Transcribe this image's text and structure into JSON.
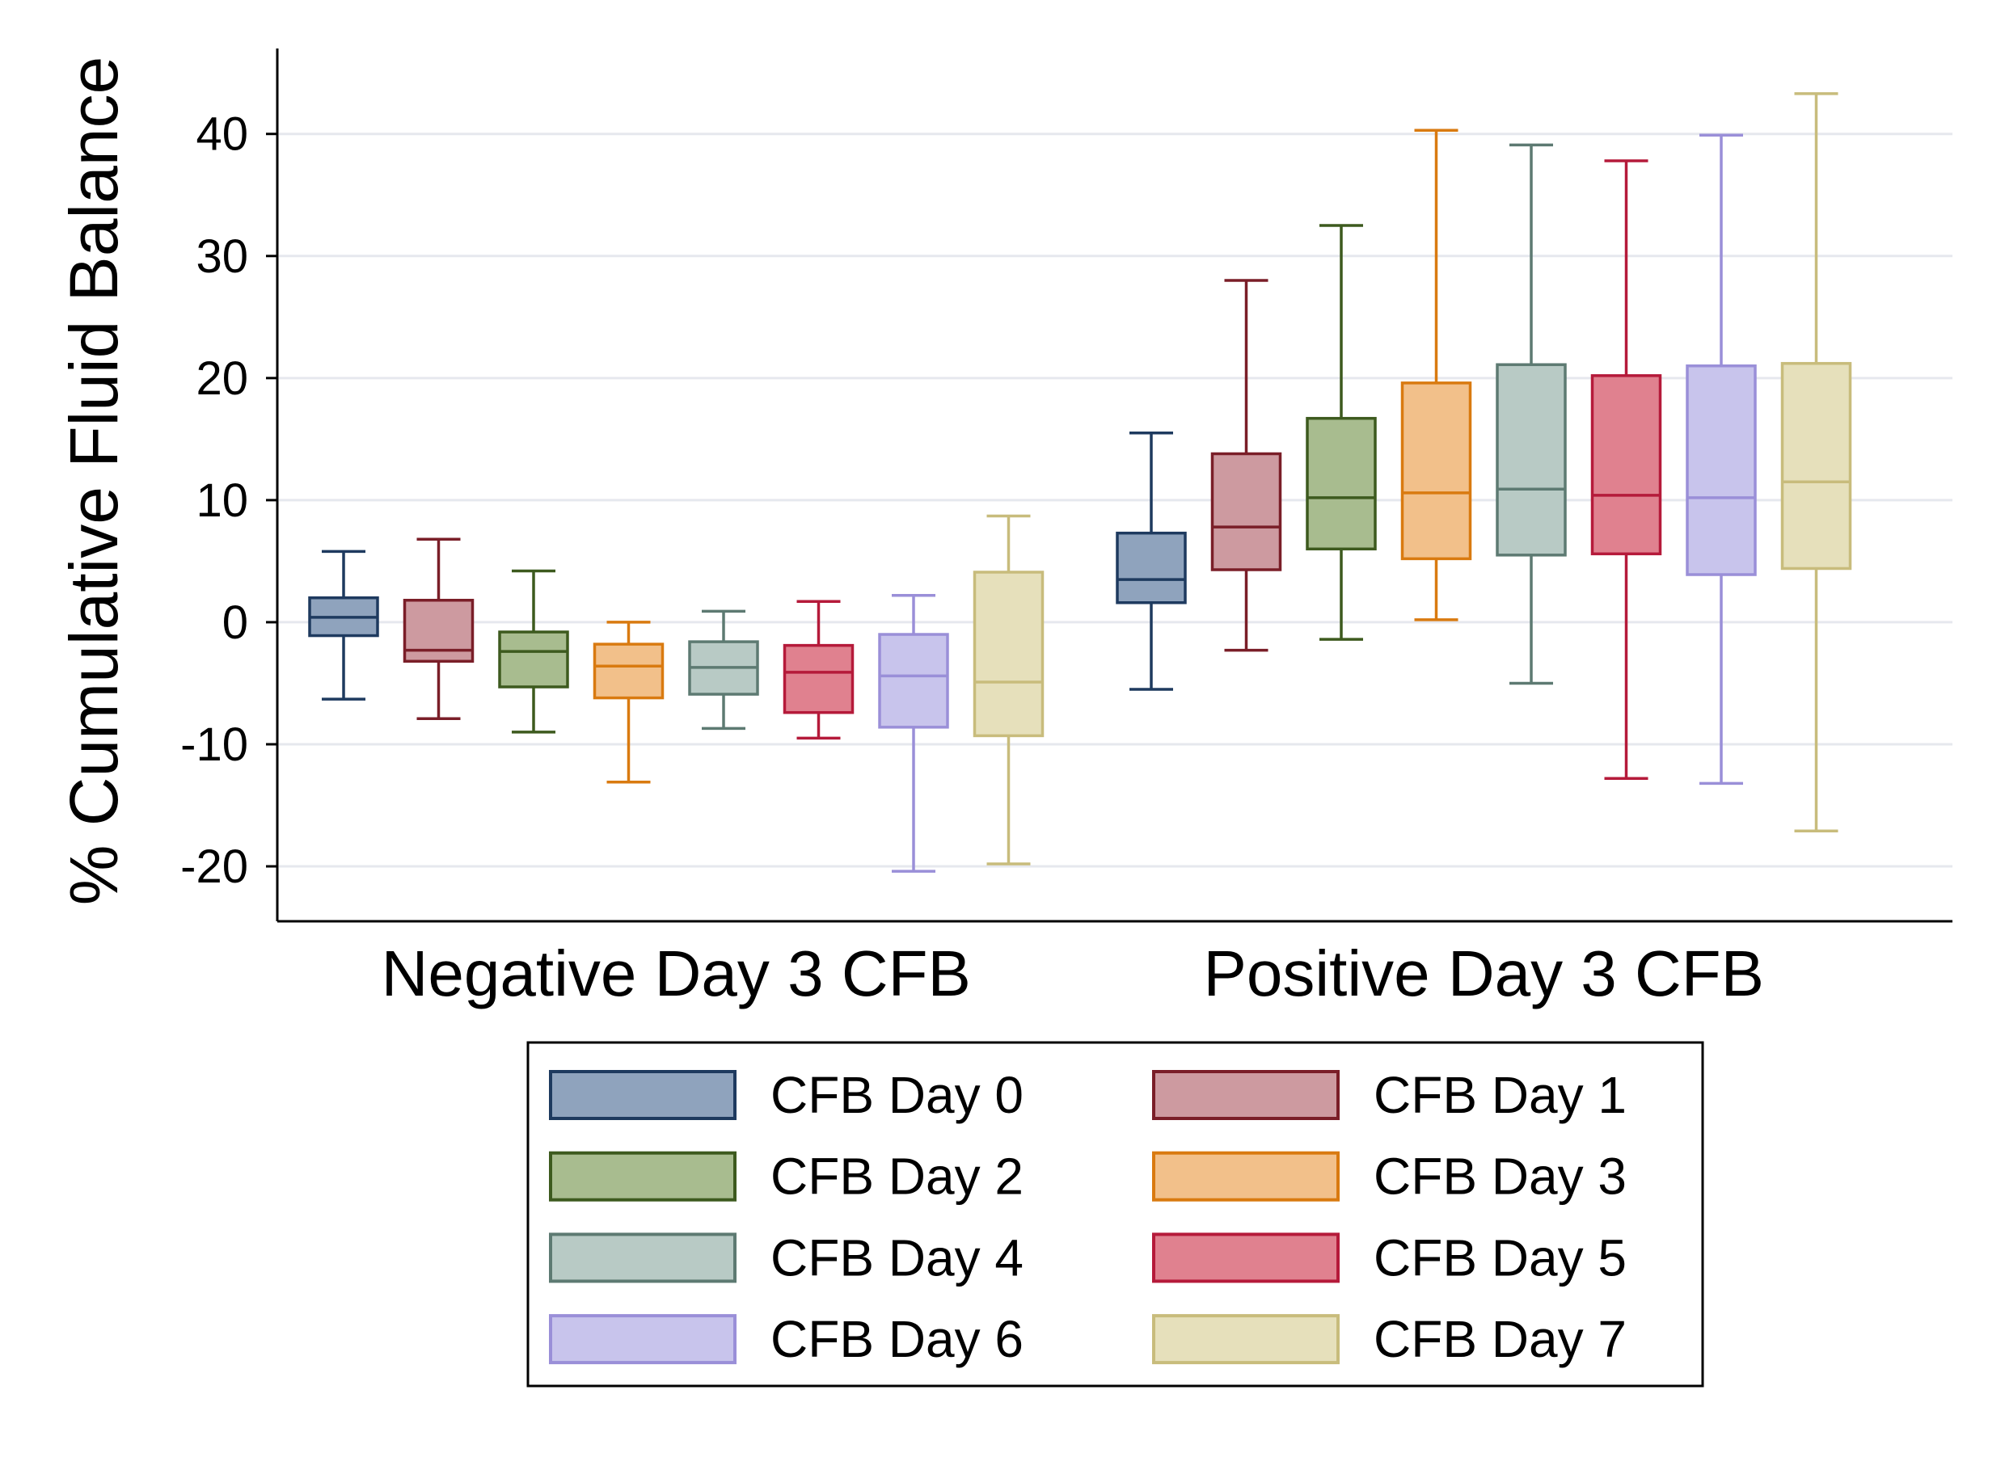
{
  "chart_data": {
    "type": "box",
    "ylabel": "% Cumulative Fluid Balance",
    "ylim": [
      -24.5,
      47
    ],
    "yticks": [
      -20,
      -10,
      0,
      10,
      20,
      30,
      40
    ],
    "ytick_labels": [
      "-20",
      "-10",
      "0",
      "10",
      "20",
      "30",
      "40"
    ],
    "grid": true,
    "legend_position": "bottom",
    "groups": [
      "Negative Day 3 CFB",
      "Positive Day 3 CFB"
    ],
    "series": [
      {
        "name": "CFB Day 0",
        "fill": "#8fa3bd",
        "stroke": "#1e3a5f",
        "boxes": [
          {
            "whisker_low": -6.3,
            "q1": -1.1,
            "median": 0.4,
            "q3": 2.0,
            "whisker_high": 5.8
          },
          {
            "whisker_low": -5.5,
            "q1": 1.6,
            "median": 3.5,
            "q3": 7.3,
            "whisker_high": 15.5
          }
        ]
      },
      {
        "name": "CFB Day 1",
        "fill": "#cd9aa0",
        "stroke": "#7a1e28",
        "boxes": [
          {
            "whisker_low": -7.9,
            "q1": -3.2,
            "median": -2.3,
            "q3": 1.8,
            "whisker_high": 6.8
          },
          {
            "whisker_low": -2.3,
            "q1": 4.3,
            "median": 7.8,
            "q3": 13.8,
            "whisker_high": 28.0
          }
        ]
      },
      {
        "name": "CFB Day 2",
        "fill": "#a8bc8f",
        "stroke": "#3d5a1e",
        "boxes": [
          {
            "whisker_low": -9.0,
            "q1": -5.3,
            "median": -2.4,
            "q3": -0.8,
            "whisker_high": 4.2
          },
          {
            "whisker_low": -1.4,
            "q1": 6.0,
            "median": 10.2,
            "q3": 16.7,
            "whisker_high": 32.5
          }
        ]
      },
      {
        "name": "CFB Day 3",
        "fill": "#f2c08a",
        "stroke": "#d97a10",
        "boxes": [
          {
            "whisker_low": -13.1,
            "q1": -6.2,
            "median": -3.6,
            "q3": -1.8,
            "whisker_high": 0.0
          },
          {
            "whisker_low": 0.2,
            "q1": 5.2,
            "median": 10.6,
            "q3": 19.6,
            "whisker_high": 40.3
          }
        ]
      },
      {
        "name": "CFB Day 4",
        "fill": "#b8cac5",
        "stroke": "#5d7a72",
        "boxes": [
          {
            "whisker_low": -8.7,
            "q1": -5.9,
            "median": -3.7,
            "q3": -1.6,
            "whisker_high": 0.9
          },
          {
            "whisker_low": -5.0,
            "q1": 5.5,
            "median": 10.9,
            "q3": 21.1,
            "whisker_high": 39.1
          }
        ]
      },
      {
        "name": "CFB Day 5",
        "fill": "#e0818f",
        "stroke": "#b51a3a",
        "boxes": [
          {
            "whisker_low": -9.5,
            "q1": -7.4,
            "median": -4.1,
            "q3": -1.9,
            "whisker_high": 1.7
          },
          {
            "whisker_low": -12.8,
            "q1": 5.6,
            "median": 10.4,
            "q3": 20.2,
            "whisker_high": 37.8
          }
        ]
      },
      {
        "name": "CFB Day 6",
        "fill": "#c8c4ec",
        "stroke": "#9a8fd8",
        "boxes": [
          {
            "whisker_low": -20.4,
            "q1": -8.6,
            "median": -4.4,
            "q3": -1.0,
            "whisker_high": 2.2
          },
          {
            "whisker_low": -13.2,
            "q1": 3.9,
            "median": 10.2,
            "q3": 21.0,
            "whisker_high": 39.9
          }
        ]
      },
      {
        "name": "CFB Day 7",
        "fill": "#e6e0bb",
        "stroke": "#c8bc7c",
        "boxes": [
          {
            "whisker_low": -19.8,
            "q1": -9.3,
            "median": -4.9,
            "q3": 4.1,
            "whisker_high": 8.7
          },
          {
            "whisker_low": -17.1,
            "q1": 4.4,
            "median": 11.5,
            "q3": 21.2,
            "whisker_high": 43.3
          }
        ]
      }
    ]
  }
}
